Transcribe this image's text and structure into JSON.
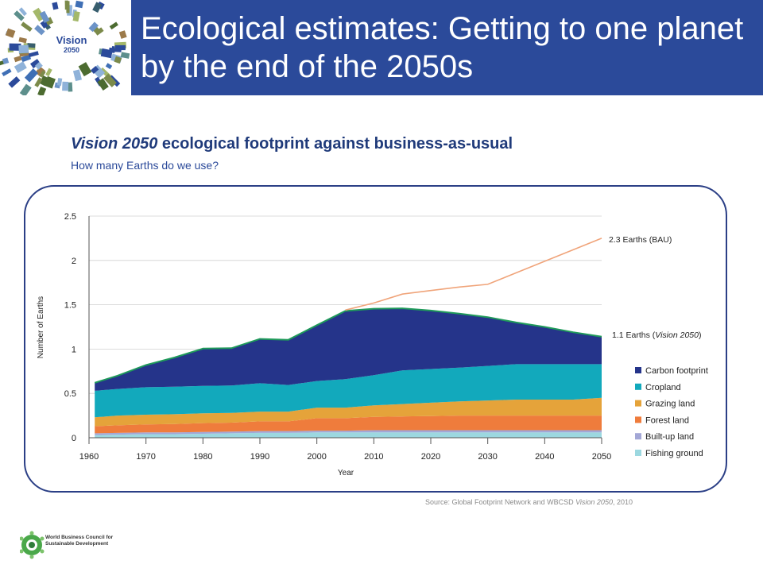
{
  "header": {
    "title": "Ecological estimates: Getting to one planet by the end of the 2050s",
    "logo_line1": "Vision",
    "logo_line2": "2050"
  },
  "chart_title_italic": "Vision 2050",
  "chart_title_rest": " ecological footprint against business-as-usual",
  "chart_subtitle": "How many Earths do we use?",
  "source_prefix": "Source: Global Footprint Network and WBCSD ",
  "source_italic": "Vision 2050",
  "source_suffix": ", 2010",
  "footer": {
    "org_line1": "World Business Council for",
    "org_line2": "Sustainable Development"
  },
  "chart_data": {
    "type": "area",
    "xlabel": "Year",
    "ylabel": "Number of Earths",
    "xlim": [
      1960,
      2050
    ],
    "ylim": [
      0,
      2.5
    ],
    "xticks": [
      1960,
      1970,
      1980,
      1990,
      2000,
      2010,
      2020,
      2030,
      2040,
      2050
    ],
    "yticks": [
      0,
      0.5,
      1,
      1.5,
      2,
      2.5
    ],
    "ytick_labels": [
      "0",
      "0.5",
      "1",
      "1.5",
      "2",
      "2.5"
    ],
    "grid": true,
    "legend_position": "right",
    "x": [
      1961,
      1965,
      1970,
      1975,
      1980,
      1985,
      1990,
      1995,
      2000,
      2005,
      2010,
      2015,
      2020,
      2025,
      2030,
      2035,
      2040,
      2045,
      2050
    ],
    "series": [
      {
        "name": "Fishing ground",
        "color": "#9cd8e0",
        "values": [
          0.03,
          0.035,
          0.04,
          0.04,
          0.045,
          0.05,
          0.055,
          0.055,
          0.06,
          0.06,
          0.06,
          0.06,
          0.06,
          0.06,
          0.06,
          0.06,
          0.06,
          0.06,
          0.06
        ]
      },
      {
        "name": "Built-up land",
        "color": "#a3a7d6",
        "values": [
          0.02,
          0.02,
          0.02,
          0.02,
          0.02,
          0.02,
          0.02,
          0.02,
          0.02,
          0.02,
          0.025,
          0.025,
          0.025,
          0.025,
          0.025,
          0.025,
          0.025,
          0.025,
          0.025
        ]
      },
      {
        "name": "Forest land",
        "color": "#ef7c3c",
        "values": [
          0.08,
          0.085,
          0.09,
          0.095,
          0.1,
          0.1,
          0.11,
          0.11,
          0.14,
          0.14,
          0.15,
          0.155,
          0.16,
          0.165,
          0.165,
          0.165,
          0.165,
          0.165,
          0.165
        ]
      },
      {
        "name": "Grazing land",
        "color": "#e5a33a",
        "values": [
          0.1,
          0.11,
          0.11,
          0.11,
          0.11,
          0.11,
          0.11,
          0.11,
          0.12,
          0.12,
          0.13,
          0.14,
          0.15,
          0.16,
          0.17,
          0.18,
          0.18,
          0.18,
          0.2
        ]
      },
      {
        "name": "Cropland",
        "color": "#12a9bc",
        "values": [
          0.3,
          0.3,
          0.31,
          0.31,
          0.31,
          0.31,
          0.32,
          0.3,
          0.3,
          0.32,
          0.34,
          0.38,
          0.38,
          0.38,
          0.39,
          0.4,
          0.4,
          0.4,
          0.38
        ]
      },
      {
        "name": "Carbon footprint",
        "color": "#25348a",
        "values": [
          0.09,
          0.15,
          0.25,
          0.33,
          0.42,
          0.42,
          0.5,
          0.51,
          0.63,
          0.77,
          0.75,
          0.7,
          0.66,
          0.61,
          0.55,
          0.47,
          0.42,
          0.36,
          0.31
        ]
      }
    ],
    "bau_line": {
      "label": "2.3 Earths (BAU)",
      "x": [
        2005,
        2010,
        2015,
        2020,
        2025,
        2030,
        2035,
        2040,
        2045,
        2050
      ],
      "values": [
        1.44,
        1.52,
        1.62,
        1.66,
        1.7,
        1.73,
        1.86,
        1.99,
        2.12,
        2.25
      ],
      "color": "#f0a47a"
    },
    "vision_annotation_prefix": "1.1 Earths (",
    "vision_annotation_italic": "Vision 2050",
    "vision_annotation_suffix": ")",
    "total_line_color": "#1f9a5a"
  }
}
